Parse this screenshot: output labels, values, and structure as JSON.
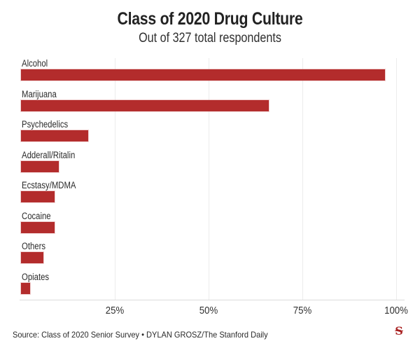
{
  "header": {
    "title": "Class of 2020 Drug Culture",
    "subtitle": "Out of 327 total respondents"
  },
  "chart_data": {
    "type": "bar",
    "orientation": "horizontal",
    "title": "Class of 2020 Drug Culture",
    "subtitle": "Out of 327 total respondents",
    "categories": [
      "Alcohol",
      "Marijuana",
      "Psychedelics",
      "Adderall/Ritalin",
      "Ecstasy/MDMA",
      "Cocaine",
      "Others",
      "Opiates"
    ],
    "values": [
      97,
      66,
      18,
      10,
      9,
      9,
      6,
      2.5
    ],
    "unit": "%",
    "xlim": [
      0,
      100
    ],
    "x_ticks": [
      "25%",
      "50%",
      "75%",
      "100%"
    ],
    "x_tick_values": [
      25,
      50,
      75,
      100
    ],
    "grid": true,
    "legend": "none",
    "bar_color": "#b32c2c",
    "gridline_color": "#ececec",
    "axis_line_color": "#dcdcdc"
  },
  "footer": {
    "source": "Source: Class of 2020 Senior Survey • DYLAN GROSZ/The Stanford Daily",
    "logo_glyph": "S",
    "logo_color": "#a82020"
  }
}
